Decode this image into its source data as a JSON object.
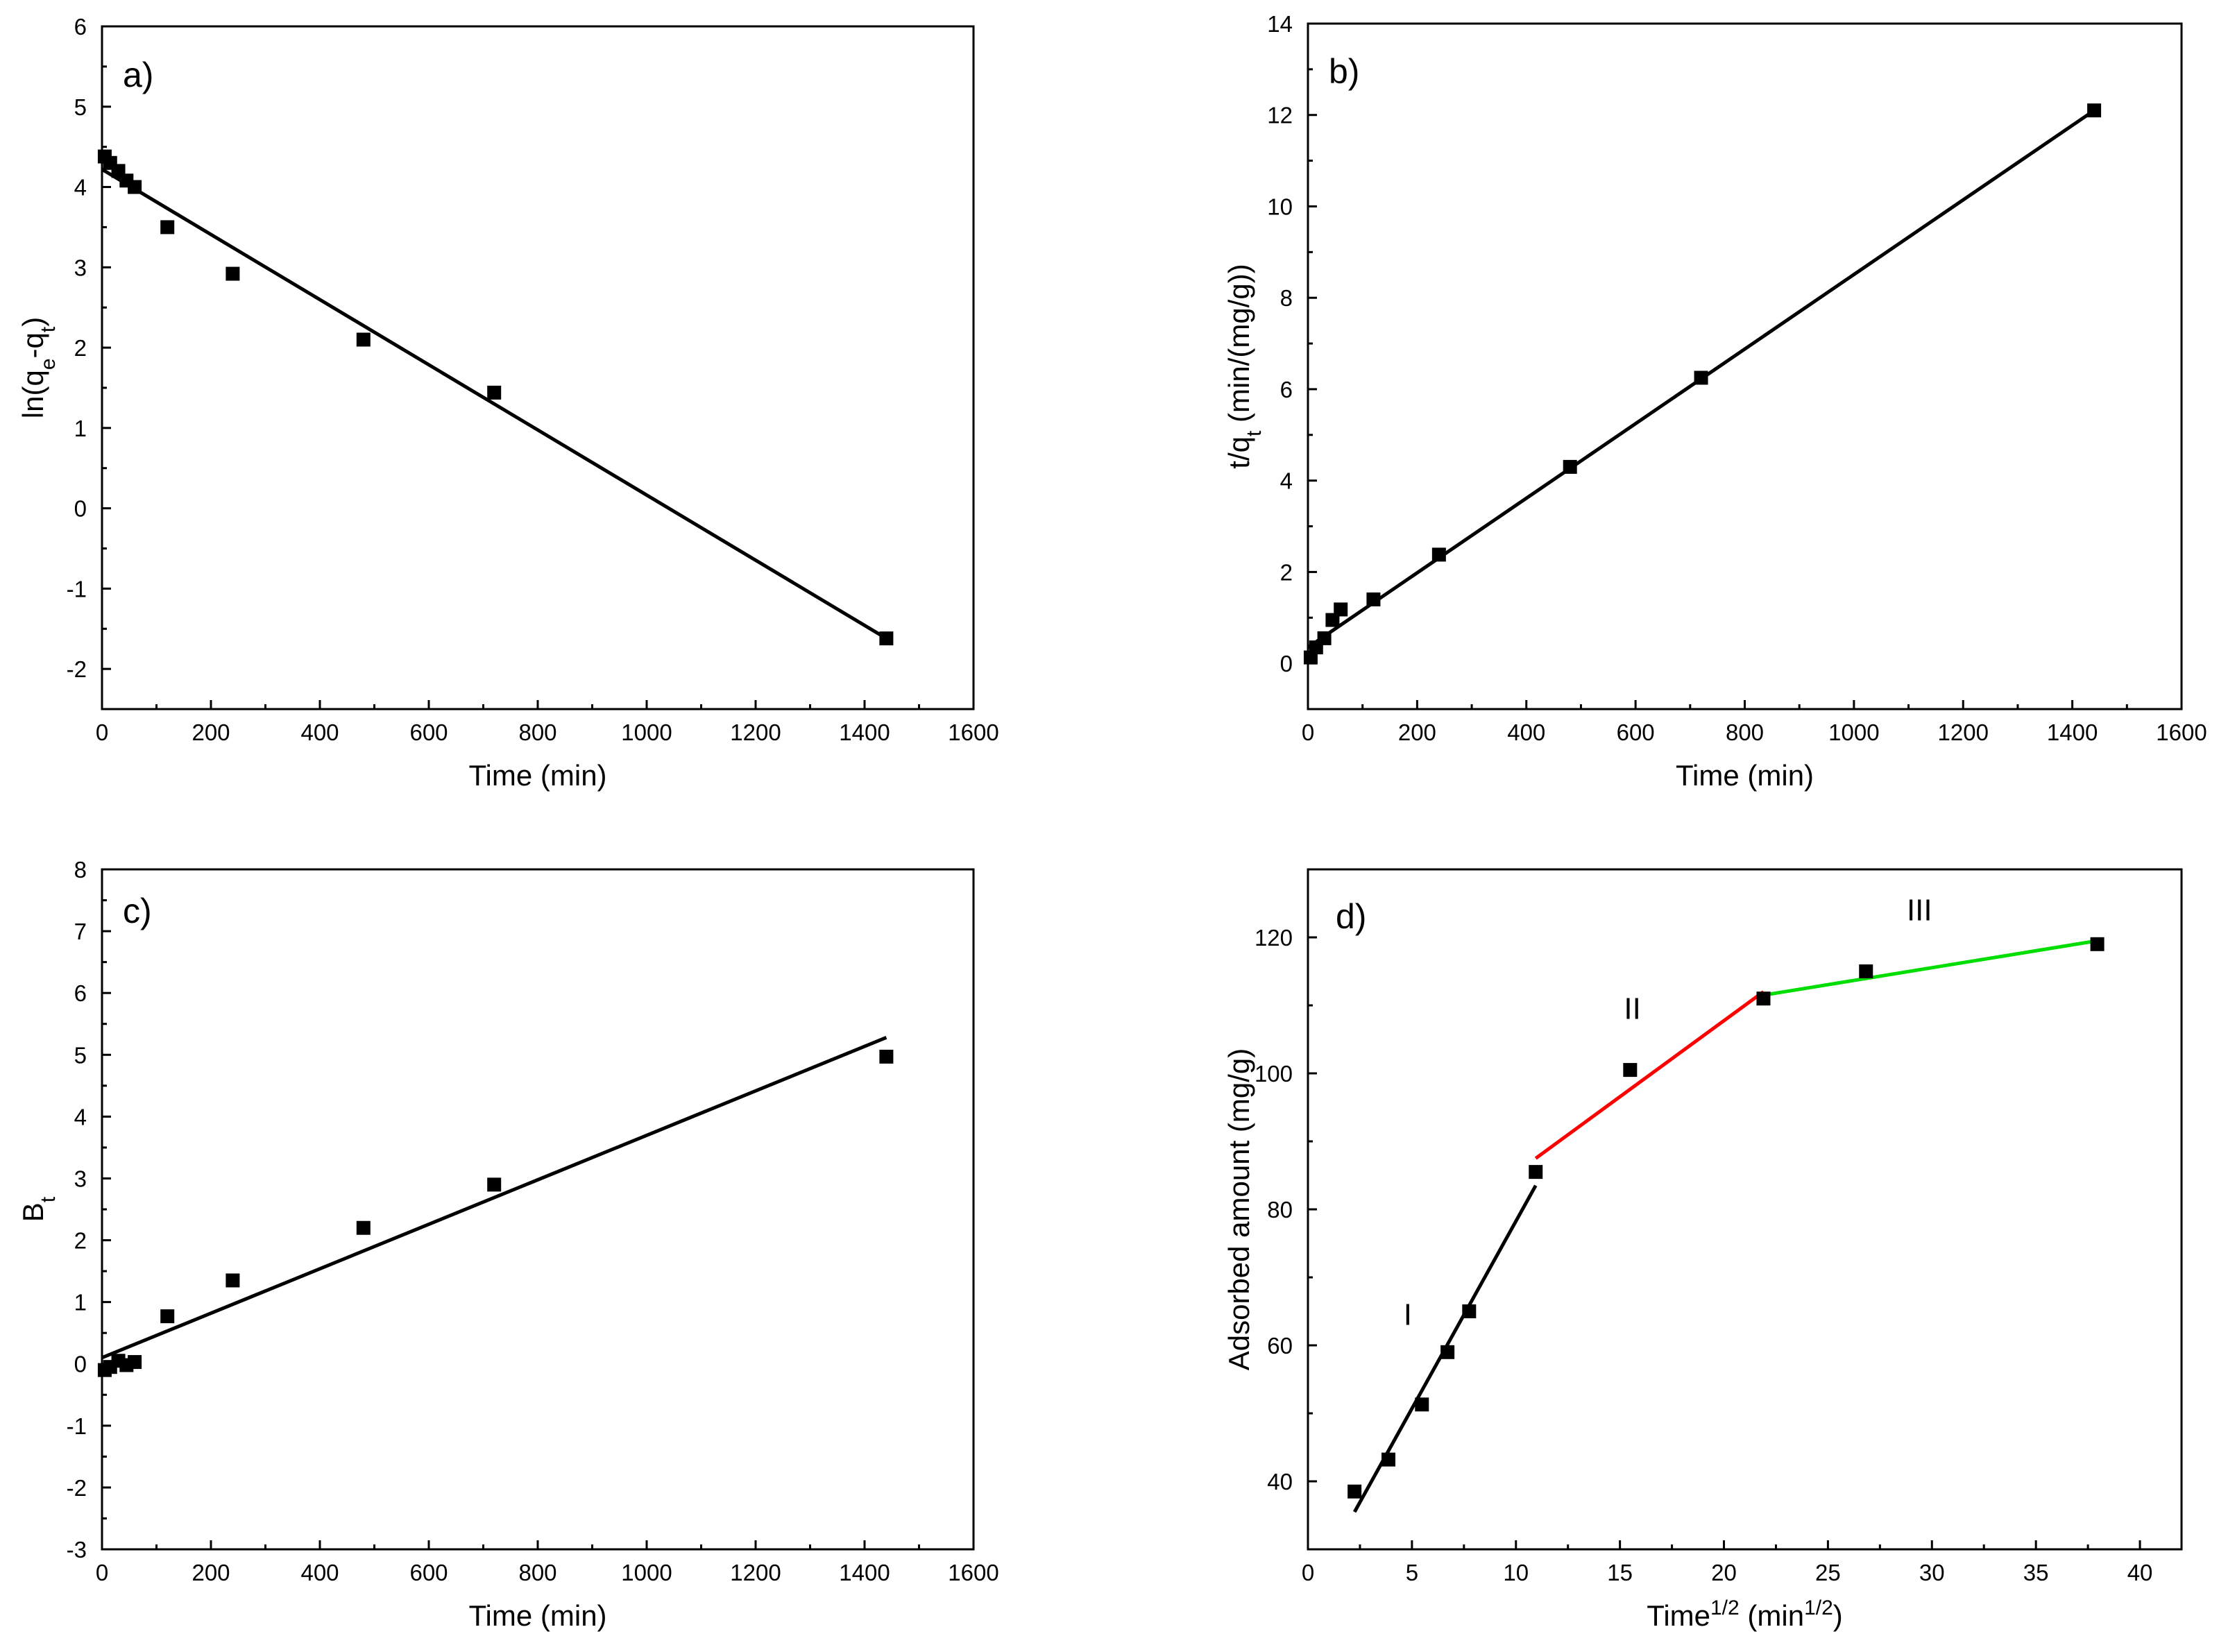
{
  "chart_data": [
    {
      "type": "scatter",
      "panel": "a)",
      "xlabel": "Time (min)",
      "ylabel_parts": [
        "ln(q",
        "e",
        "-q",
        "t",
        ")"
      ],
      "xlim": [
        0,
        1600
      ],
      "ylim": [
        -2.5,
        6
      ],
      "xticks": [
        0,
        200,
        400,
        600,
        800,
        1000,
        1200,
        1400,
        1600
      ],
      "yticks": [
        -2,
        -1,
        0,
        1,
        2,
        3,
        4,
        5,
        6
      ],
      "points": [
        [
          5,
          4.38
        ],
        [
          15,
          4.3
        ],
        [
          30,
          4.2
        ],
        [
          45,
          4.08
        ],
        [
          60,
          4.0
        ],
        [
          120,
          3.5
        ],
        [
          240,
          2.92
        ],
        [
          480,
          2.1
        ],
        [
          720,
          1.44
        ],
        [
          1440,
          -1.62
        ]
      ],
      "fits": [
        {
          "x": [
            0,
            1440
          ],
          "y": [
            4.22,
            -1.62
          ],
          "color": "#000000"
        }
      ],
      "annotations": []
    },
    {
      "type": "scatter",
      "panel": "b)",
      "xlabel": "Time (min)",
      "ylabel_parts": [
        "t/q",
        "t",
        " (min/(mg/g))"
      ],
      "xlim": [
        0,
        1600
      ],
      "ylim": [
        -1,
        14
      ],
      "xticks": [
        0,
        200,
        400,
        600,
        800,
        1000,
        1200,
        1400,
        1600
      ],
      "yticks": [
        0,
        2,
        4,
        6,
        8,
        10,
        12,
        14
      ],
      "points": [
        [
          5,
          0.13
        ],
        [
          15,
          0.35
        ],
        [
          30,
          0.55
        ],
        [
          45,
          0.95
        ],
        [
          60,
          1.18
        ],
        [
          120,
          1.4
        ],
        [
          240,
          2.38
        ],
        [
          480,
          4.3
        ],
        [
          720,
          6.25
        ],
        [
          1440,
          12.1
        ]
      ],
      "fits": [
        {
          "x": [
            0,
            1440
          ],
          "y": [
            0.35,
            12.1
          ],
          "color": "#000000"
        }
      ],
      "annotations": []
    },
    {
      "type": "scatter",
      "panel": "c)",
      "xlabel": "Time (min)",
      "ylabel_parts": [
        "B",
        "t"
      ],
      "xlim": [
        0,
        1600
      ],
      "ylim": [
        -3,
        8
      ],
      "xticks": [
        0,
        200,
        400,
        600,
        800,
        1000,
        1200,
        1400,
        1600
      ],
      "yticks": [
        -3,
        -2,
        -1,
        0,
        1,
        2,
        3,
        4,
        5,
        6,
        7,
        8
      ],
      "points": [
        [
          5,
          -0.1
        ],
        [
          15,
          -0.05
        ],
        [
          30,
          0.05
        ],
        [
          45,
          -0.02
        ],
        [
          60,
          0.03
        ],
        [
          120,
          0.77
        ],
        [
          240,
          1.35
        ],
        [
          480,
          2.2
        ],
        [
          720,
          2.9
        ],
        [
          1440,
          4.97
        ]
      ],
      "fits": [
        {
          "x": [
            0,
            1440
          ],
          "y": [
            0.1,
            5.28
          ],
          "color": "#000000"
        }
      ],
      "annotations": []
    },
    {
      "type": "scatter",
      "panel": "d)",
      "xlabel_parts": [
        "Time",
        "1/2",
        " (min",
        "1/2",
        ")"
      ],
      "ylabel": "Adsorbed amount (mg/g)",
      "xlim": [
        0,
        42
      ],
      "ylim": [
        30,
        130
      ],
      "xticks": [
        0,
        5,
        10,
        15,
        20,
        25,
        30,
        35,
        40
      ],
      "yticks": [
        40,
        60,
        80,
        100,
        120
      ],
      "points": [
        [
          2.24,
          38.5
        ],
        [
          3.87,
          43.2
        ],
        [
          5.48,
          51.3
        ],
        [
          6.71,
          59.0
        ],
        [
          7.75,
          65.0
        ],
        [
          10.95,
          85.5
        ],
        [
          15.49,
          100.5
        ],
        [
          21.9,
          111.0
        ],
        [
          26.83,
          115.0
        ],
        [
          37.95,
          119.0
        ]
      ],
      "fits": [
        {
          "x": [
            2.24,
            10.95
          ],
          "y": [
            35.5,
            83.5
          ],
          "color": "#000000"
        },
        {
          "x": [
            10.95,
            21.9
          ],
          "y": [
            87.5,
            112.0
          ],
          "color": "#ff0000"
        },
        {
          "x": [
            21.9,
            37.95
          ],
          "y": [
            111.5,
            119.5
          ],
          "color": "#00dd00"
        }
      ],
      "annotations": [
        {
          "text": "I",
          "x": 4.8,
          "y": 63
        },
        {
          "text": "II",
          "x": 15.6,
          "y": 108
        },
        {
          "text": "III",
          "x": 29.4,
          "y": 122.5
        }
      ]
    }
  ]
}
